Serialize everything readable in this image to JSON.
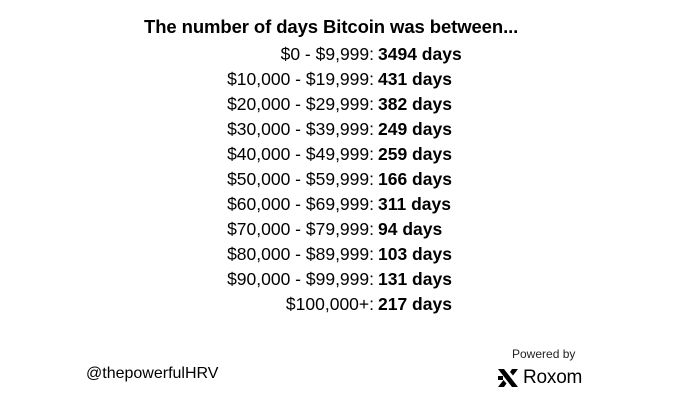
{
  "title": "The number of days Bitcoin was between...",
  "rows": [
    {
      "range": "$0 - $9,999:",
      "days": "3494 days"
    },
    {
      "range": "$10,000 - $19,999:",
      "days": "431 days"
    },
    {
      "range": "$20,000 - $29,999:",
      "days": "382 days"
    },
    {
      "range": "$30,000 - $39,999:",
      "days": "249 days"
    },
    {
      "range": "$40,000 - $49,999:",
      "days": "259 days"
    },
    {
      "range": "$50,000 - $59,999:",
      "days": "166 days"
    },
    {
      "range": "$60,000 - $69,999:",
      "days": "311 days"
    },
    {
      "range": "$70,000 - $79,999:",
      "days": "94 days"
    },
    {
      "range": "$80,000 - $89,999:",
      "days": "103 days"
    },
    {
      "range": "$90,000 - $99,999:",
      "days": "131 days"
    },
    {
      "range": "$100,000+:",
      "days": "217 days"
    }
  ],
  "footer": {
    "handle": "@thepowerfulHRV",
    "powered_by": "Powered by",
    "brand_name": "Roxom",
    "brand_icon": "roxom-logo-icon"
  },
  "colors": {
    "text": "#000000",
    "background": "#ffffff"
  }
}
